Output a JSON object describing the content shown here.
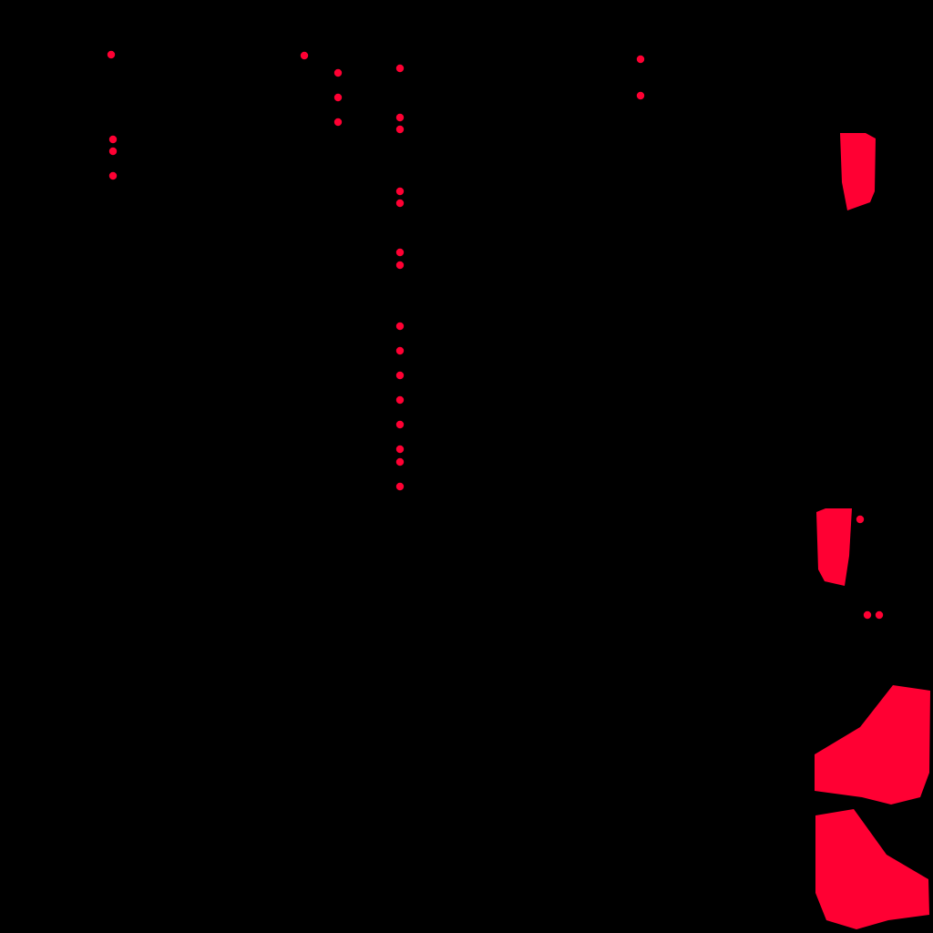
{
  "mask": {
    "background_color": "#000000",
    "foreground_color": "#FF0033"
  }
}
